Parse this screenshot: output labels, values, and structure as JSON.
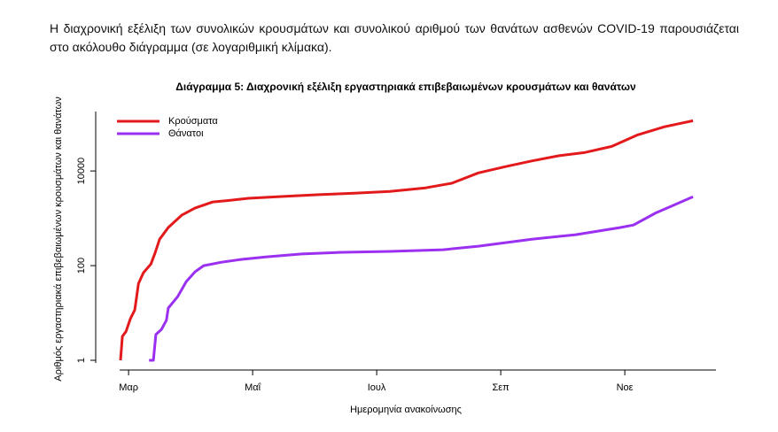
{
  "intro": "Η διαχρονική εξέλιξη των συνολικών κρουσμάτων και συνολικού αριθμού των θανάτων ασθενών COVID-19 παρουσιάζεται στο ακόλουθο διάγραμμα (σε λογαριθμική κλίμακα).",
  "chart_data": {
    "type": "line",
    "title": "Διάγραμμα 5: Διαχρονική εξέλιξη εργαστηριακά επιβεβαιωμένων κρουσμάτων και θανάτων",
    "x_label": "Ημερομηνία ανακοίνωσης",
    "y_label": "Αριθμός εργαστηριακά επιβεβαιωμένων κρουσμάτων και θανάτων",
    "log_y": true,
    "legend": "top-left",
    "xlim": [
      2.47,
      12.47
    ],
    "xticks": [
      {
        "value": 3,
        "label": "Μαρ"
      },
      {
        "value": 5,
        "label": "Μαΐ"
      },
      {
        "value": 7,
        "label": "Ιουλ"
      },
      {
        "value": 9,
        "label": "Σεπ"
      },
      {
        "value": 11,
        "label": "Νοε"
      }
    ],
    "ylim": [
      1,
      180000
    ],
    "yticks": [
      1,
      100,
      10000
    ],
    "series": [
      {
        "name": "Κρούσματα",
        "color": "#e31a1c",
        "x": [
          2.87,
          2.9,
          2.96,
          3.03,
          3.1,
          3.16,
          3.24,
          3.36,
          3.43,
          3.5,
          3.64,
          3.86,
          4.07,
          4.36,
          4.64,
          4.93,
          5.5,
          6.07,
          6.64,
          7.21,
          7.79,
          8.21,
          8.64,
          9.07,
          9.5,
          9.93,
          10.36,
          10.79,
          11.21,
          11.64,
          12.1
        ],
        "values": [
          1,
          3.2,
          4.1,
          7.6,
          11.6,
          42,
          71,
          108,
          190,
          360,
          640,
          1170,
          1640,
          2220,
          2400,
          2650,
          2900,
          3150,
          3400,
          3700,
          4400,
          5500,
          9100,
          12300,
          16300,
          20900,
          24600,
          33000,
          58000,
          86000,
          115000
        ]
      },
      {
        "name": "Θάνατοι",
        "color": "#9b30f0",
        "x": [
          3.33,
          3.4,
          3.44,
          3.53,
          3.61,
          3.64,
          3.79,
          3.93,
          4.07,
          4.21,
          4.5,
          4.79,
          5.21,
          5.79,
          6.36,
          7.21,
          8.07,
          8.64,
          9.5,
          10.21,
          10.93,
          11.14,
          11.5,
          12.1
        ],
        "values": [
          1,
          1,
          3.5,
          4.5,
          7,
          12.7,
          22,
          46,
          74,
          100,
          118,
          134,
          153,
          176,
          190,
          200,
          217,
          257,
          360,
          450,
          640,
          720,
          1300,
          2850
        ]
      }
    ]
  }
}
